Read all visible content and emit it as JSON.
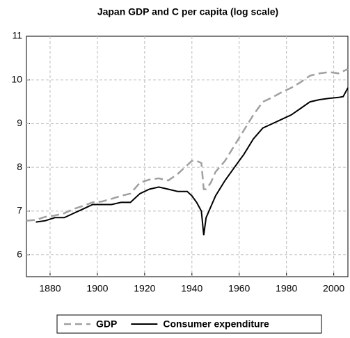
{
  "chart_data": {
    "type": "line",
    "title": "Japan GDP and C per capita (log scale)",
    "x": [
      1870,
      1874,
      1878,
      1882,
      1886,
      1890,
      1894,
      1898,
      1902,
      1906,
      1910,
      1914,
      1918,
      1922,
      1926,
      1930,
      1934,
      1938,
      1940,
      1942,
      1944,
      1945,
      1946,
      1948,
      1950,
      1954,
      1958,
      1962,
      1966,
      1970,
      1974,
      1978,
      1982,
      1986,
      1990,
      1994,
      1998,
      2002,
      2004,
      2006
    ],
    "series": [
      {
        "name": "GDP",
        "color": "#a0a0a0",
        "dashed": true,
        "values": [
          6.78,
          6.8,
          6.87,
          6.9,
          6.95,
          7.05,
          7.12,
          7.2,
          7.22,
          7.28,
          7.35,
          7.4,
          7.65,
          7.72,
          7.75,
          7.7,
          7.85,
          8.05,
          8.15,
          8.15,
          8.1,
          7.5,
          7.5,
          7.65,
          7.9,
          8.15,
          8.5,
          8.85,
          9.2,
          9.5,
          9.6,
          9.72,
          9.82,
          9.95,
          10.1,
          10.15,
          10.18,
          10.15,
          10.2,
          10.25
        ]
      },
      {
        "name": "Consumer expenditure",
        "color": "#000000",
        "dashed": false,
        "values": [
          null,
          6.75,
          6.78,
          6.85,
          6.85,
          6.95,
          7.05,
          7.15,
          7.15,
          7.15,
          7.2,
          7.2,
          7.4,
          7.5,
          7.55,
          7.5,
          7.45,
          7.45,
          7.35,
          7.2,
          7.0,
          6.45,
          6.85,
          7.1,
          7.35,
          7.7,
          8.0,
          8.3,
          8.65,
          8.9,
          9.0,
          9.1,
          9.2,
          9.35,
          9.5,
          9.55,
          9.58,
          9.6,
          9.62,
          9.82
        ]
      }
    ],
    "xlim": [
      1870,
      2006
    ],
    "xticks": [
      1880,
      1900,
      1920,
      1940,
      1960,
      1980,
      2000
    ],
    "ylim": [
      5.5,
      11
    ],
    "yticks": [
      6,
      7,
      8,
      9,
      10,
      11
    ],
    "grid": true,
    "legend": "bottom"
  }
}
